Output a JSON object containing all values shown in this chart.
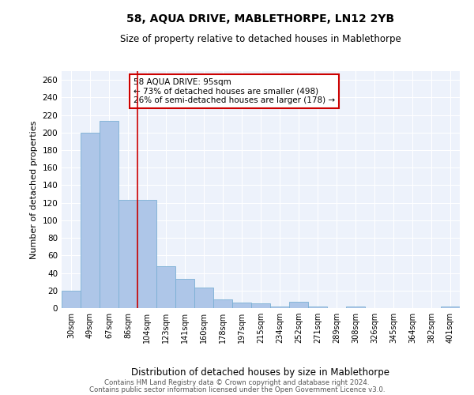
{
  "title1": "58, AQUA DRIVE, MABLETHORPE, LN12 2YB",
  "title2": "Size of property relative to detached houses in Mablethorpe",
  "xlabel": "Distribution of detached houses by size in Mablethorpe",
  "ylabel": "Number of detached properties",
  "categories": [
    "30sqm",
    "49sqm",
    "67sqm",
    "86sqm",
    "104sqm",
    "123sqm",
    "141sqm",
    "160sqm",
    "178sqm",
    "197sqm",
    "215sqm",
    "234sqm",
    "252sqm",
    "271sqm",
    "289sqm",
    "308sqm",
    "326sqm",
    "345sqm",
    "364sqm",
    "382sqm",
    "401sqm"
  ],
  "values": [
    20,
    200,
    213,
    123,
    123,
    48,
    33,
    23,
    10,
    6,
    5,
    2,
    7,
    2,
    0,
    2,
    0,
    0,
    0,
    0,
    2
  ],
  "bar_color": "#aec6e8",
  "bar_edge_color": "#7aafd4",
  "vline_x": 3.5,
  "vline_color": "#cc0000",
  "annotation_line1": "58 AQUA DRIVE: 95sqm",
  "annotation_line2": "← 73% of detached houses are smaller (498)",
  "annotation_line3": "26% of semi-detached houses are larger (178) →",
  "annotation_box_color": "#ffffff",
  "annotation_box_edge_color": "#cc0000",
  "ylim": [
    0,
    270
  ],
  "yticks": [
    0,
    20,
    40,
    60,
    80,
    100,
    120,
    140,
    160,
    180,
    200,
    220,
    240,
    260
  ],
  "bg_color": "#edf2fb",
  "footer1": "Contains HM Land Registry data © Crown copyright and database right 2024.",
  "footer2": "Contains public sector information licensed under the Open Government Licence v3.0."
}
